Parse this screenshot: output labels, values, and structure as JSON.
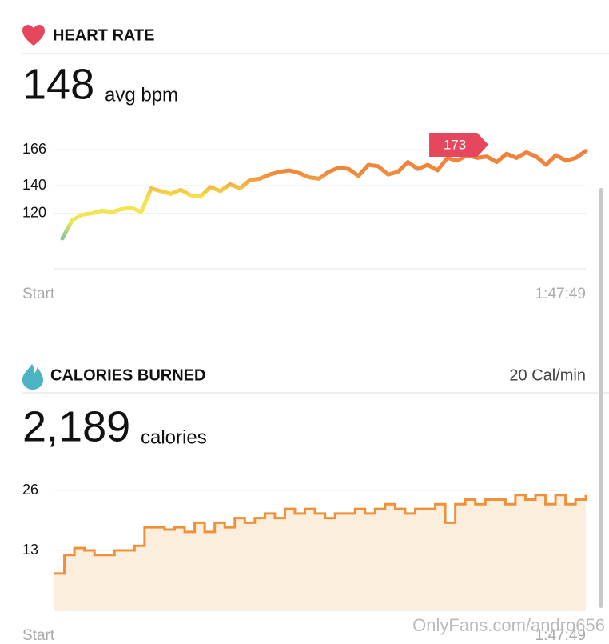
{
  "heart_rate": {
    "title": "HEART RATE",
    "value": 148,
    "unit": "avg bpm"
  },
  "calories": {
    "title": "CALORIES BURNED",
    "rate": "20 Cal/min",
    "value": "2,189",
    "unit": "calories"
  },
  "watermark": "OnlyFans.com/andro656",
  "chart_data": [
    {
      "type": "line",
      "x": [
        0,
        122,
        244,
        366,
        488,
        610,
        732,
        854,
        976,
        1098,
        1220,
        1342,
        1464,
        1586,
        1708,
        1830,
        1952,
        2074,
        2196,
        2318,
        2440,
        2562,
        2684,
        2806,
        2928,
        3050,
        3172,
        3294,
        3416,
        3538,
        3660,
        3782,
        3904,
        4026,
        4148,
        4270,
        4392,
        4514,
        4636,
        4758,
        4880,
        5002,
        5124,
        5246,
        5368,
        5490,
        5612,
        5734,
        5856,
        5978,
        6100,
        6222,
        6344,
        6469
      ],
      "values": [
        102,
        115,
        119,
        120,
        122,
        121,
        123,
        124,
        121,
        138,
        136,
        134,
        137,
        133,
        132,
        139,
        136,
        141,
        138,
        144,
        145,
        148,
        150,
        151,
        149,
        146,
        145,
        150,
        153,
        152,
        147,
        155,
        154,
        148,
        150,
        157,
        152,
        155,
        151,
        160,
        158,
        162,
        160,
        161,
        157,
        163,
        160,
        164,
        161,
        155,
        162,
        158,
        160,
        165
      ],
      "gradient": [
        "#ef7f3c",
        "#f08a3c",
        "#f5e24c",
        "#f2e65a",
        "#5bb8b0"
      ],
      "xlim": [
        0,
        6469
      ],
      "xticks": [
        {
          "value": 0,
          "label": "Start"
        },
        {
          "value": 6469,
          "label": "1:47:49"
        }
      ],
      "ylim": [
        80,
        166
      ],
      "yticks": [
        120,
        140,
        166
      ],
      "grid": true,
      "peak": {
        "x": 4850,
        "value": 173,
        "color": "#e5485e"
      }
    },
    {
      "type": "area",
      "x": [
        0,
        122,
        244,
        366,
        488,
        610,
        732,
        854,
        976,
        1098,
        1220,
        1342,
        1464,
        1586,
        1708,
        1830,
        1952,
        2074,
        2196,
        2318,
        2440,
        2562,
        2684,
        2806,
        2928,
        3050,
        3172,
        3294,
        3416,
        3538,
        3660,
        3782,
        3904,
        4026,
        4148,
        4270,
        4392,
        4514,
        4636,
        4758,
        4880,
        5002,
        5124,
        5246,
        5368,
        5490,
        5612,
        5734,
        5856,
        5978,
        6100,
        6222,
        6344,
        6469
      ],
      "values": [
        8,
        12,
        13.5,
        13,
        12,
        12,
        13,
        13,
        14,
        18,
        18,
        17.5,
        18,
        17,
        19,
        17,
        19,
        18,
        20,
        19,
        20,
        21,
        20,
        22,
        21,
        22,
        21,
        20,
        21,
        21,
        22,
        21,
        22,
        23,
        22,
        21,
        22,
        22,
        23,
        19,
        23,
        24,
        23,
        24,
        24,
        23,
        25,
        24,
        25,
        23,
        25,
        23,
        24,
        25
      ],
      "color": "#f0913a",
      "fill": "#fbeedd",
      "xlim": [
        0,
        6469
      ],
      "xticks": [
        {
          "value": 0,
          "label": "Start"
        },
        {
          "value": 6469,
          "label": "1:47:49"
        }
      ],
      "ylim": [
        0,
        26
      ],
      "yticks": [
        13,
        26
      ],
      "grid": true
    }
  ]
}
